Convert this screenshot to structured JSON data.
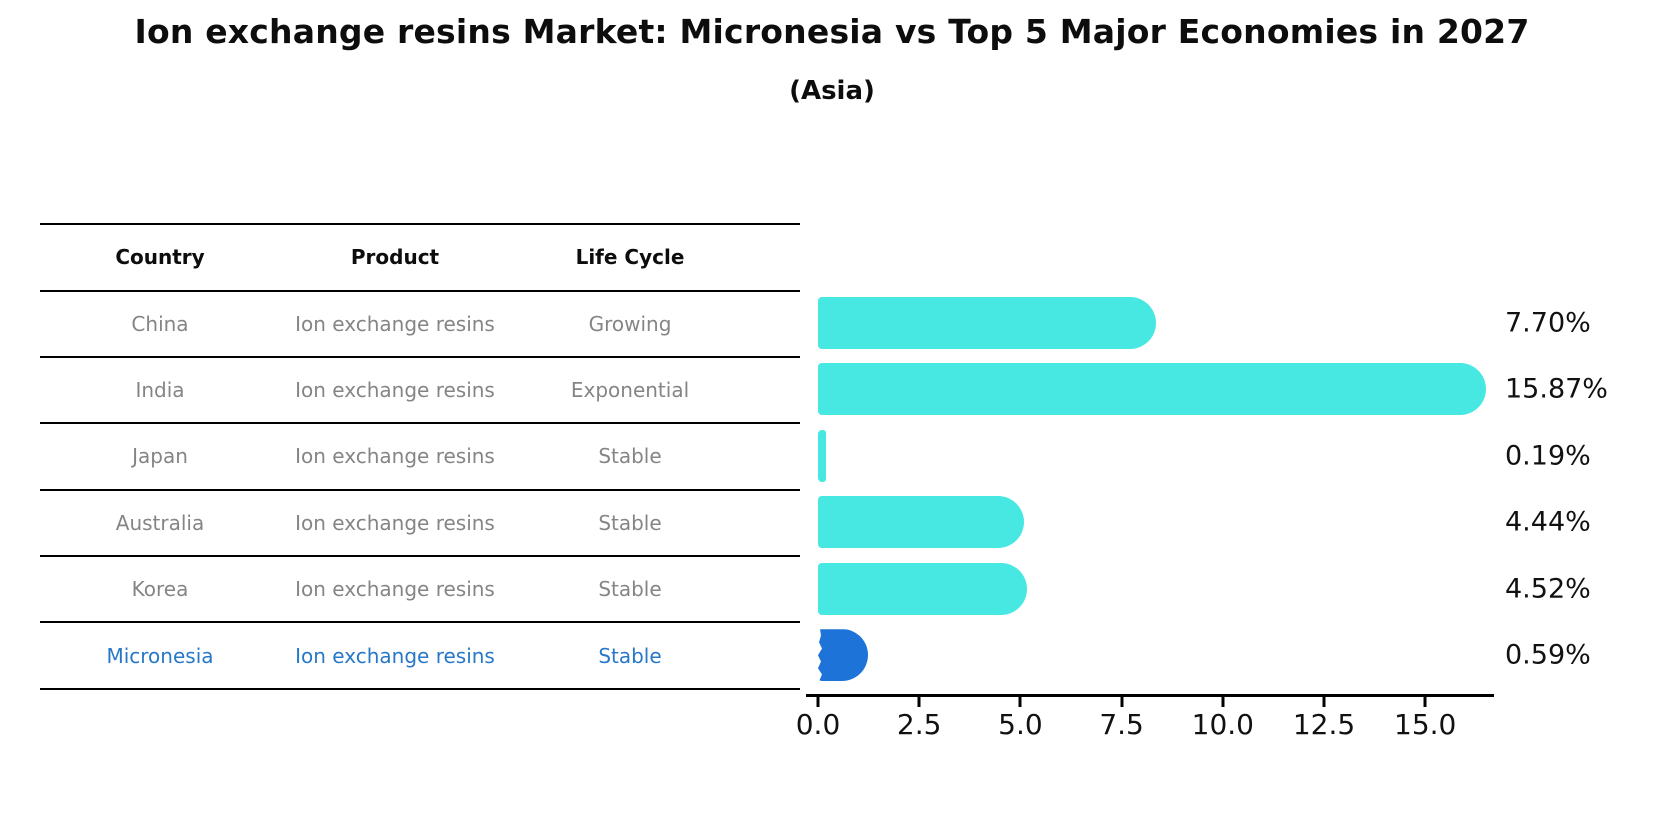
{
  "title": "Ion exchange resins Market: Micronesia vs Top 5 Major Economies in 2027",
  "subtitle": "(Asia)",
  "table": {
    "headers": [
      "Country",
      "Product",
      "Life Cycle"
    ],
    "rows": [
      {
        "country": "China",
        "product": "Ion exchange resins",
        "life_cycle": "Growing"
      },
      {
        "country": "India",
        "product": "Ion exchange resins",
        "life_cycle": "Exponential"
      },
      {
        "country": "Japan",
        "product": "Ion exchange resins",
        "life_cycle": "Stable"
      },
      {
        "country": "Australia",
        "product": "Ion exchange resins",
        "life_cycle": "Stable"
      },
      {
        "country": "Korea",
        "product": "Ion exchange resins",
        "life_cycle": "Stable"
      },
      {
        "country": "Micronesia",
        "product": "Ion exchange resins",
        "life_cycle": "Stable"
      }
    ]
  },
  "chart_data": {
    "type": "bar",
    "orientation": "horizontal",
    "title": "Ion exchange resins Market: Micronesia vs Top 5 Major Economies in 2027",
    "subtitle": "(Asia)",
    "categories": [
      "China",
      "India",
      "Japan",
      "Australia",
      "Korea",
      "Micronesia"
    ],
    "values": [
      7.7,
      15.87,
      0.19,
      4.44,
      4.52,
      0.59
    ],
    "labels": [
      "7.70%",
      "15.87%",
      "0.19%",
      "4.44%",
      "4.52%",
      "0.59%"
    ],
    "x_ticks": [
      "0.0",
      "2.5",
      "5.0",
      "7.5",
      "10.0",
      "12.5",
      "15.0"
    ],
    "xlim": [
      0,
      16.9
    ],
    "grid": false,
    "legend": "none",
    "bar_color": "#47E7E2",
    "highlight_color": "#1E73D8",
    "highlight_index": 5,
    "highlight_text_color": "#2878c8",
    "value_label_color": "#111111",
    "axis_color": "#000000"
  }
}
